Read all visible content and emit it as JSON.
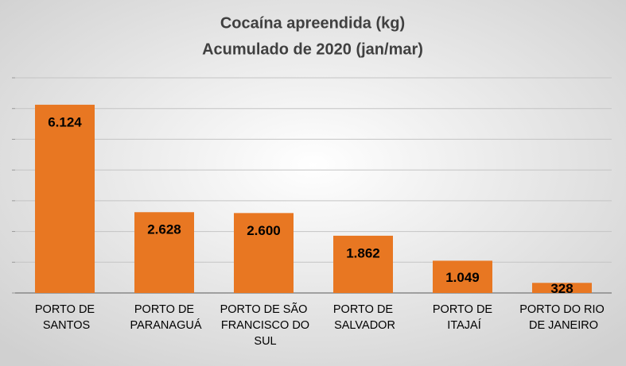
{
  "chart_data": {
    "type": "bar",
    "title": "Cocaína apreendida (kg)",
    "subtitle": "Acumulado de 2020 (jan/mar)",
    "categories": [
      "PORTO DE SANTOS",
      "PORTO DE PARANAGUÁ",
      "PORTO DE SÃO FRANCISCO DO SUL",
      "PORTO DE SALVADOR",
      "PORTO DE ITAJAÍ",
      "PORTO DO RIO DE JANEIRO"
    ],
    "values": [
      6124,
      2628,
      2600,
      1862,
      1049,
      328
    ],
    "value_labels": [
      "6.124",
      "2.628",
      "2.600",
      "1.862",
      "1.049",
      "328"
    ],
    "color": "#e87722",
    "ylim": [
      0,
      7000
    ],
    "yticks": [
      0,
      1000,
      2000,
      3000,
      4000,
      5000,
      6000,
      7000
    ],
    "grid": true
  }
}
